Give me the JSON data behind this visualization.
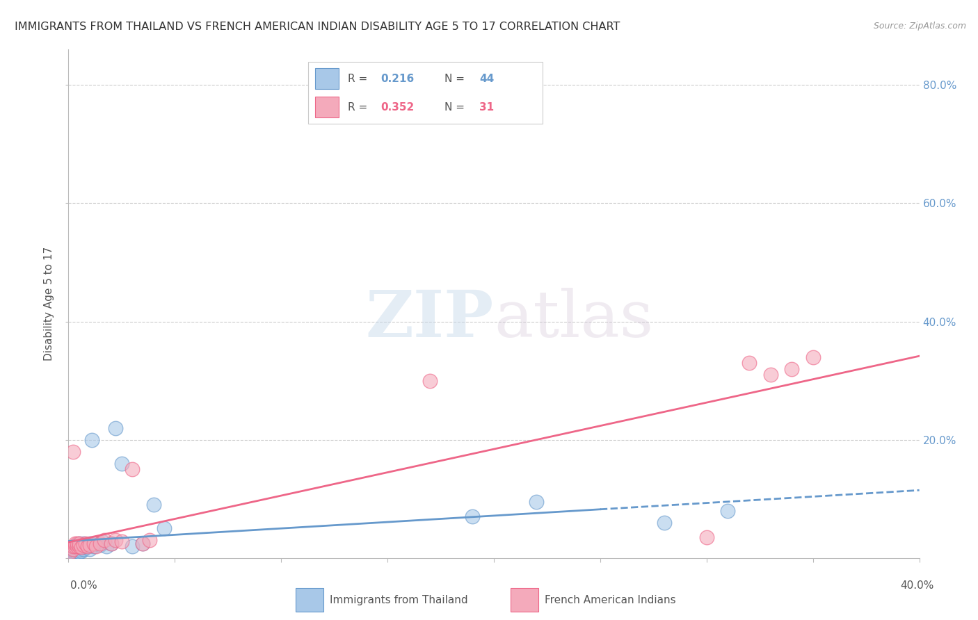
{
  "title": "IMMIGRANTS FROM THAILAND VS FRENCH AMERICAN INDIAN DISABILITY AGE 5 TO 17 CORRELATION CHART",
  "source": "Source: ZipAtlas.com",
  "ylabel": "Disability Age 5 to 17",
  "legend1_label": "Immigrants from Thailand",
  "legend2_label": "French American Indians",
  "r1": 0.216,
  "n1": 44,
  "r2": 0.352,
  "n2": 31,
  "color_blue": "#A8C8E8",
  "color_pink": "#F4AABB",
  "line_color_blue": "#6699CC",
  "line_color_pink": "#EE6688",
  "watermark_zip": "ZIP",
  "watermark_atlas": "atlas",
  "xlim": [
    0.0,
    0.4
  ],
  "ylim": [
    0.0,
    0.86
  ],
  "th_x": [
    0.001,
    0.001,
    0.001,
    0.001,
    0.002,
    0.002,
    0.002,
    0.002,
    0.002,
    0.003,
    0.003,
    0.003,
    0.003,
    0.004,
    0.004,
    0.004,
    0.005,
    0.005,
    0.005,
    0.006,
    0.006,
    0.007,
    0.007,
    0.008,
    0.009,
    0.01,
    0.01,
    0.011,
    0.012,
    0.013,
    0.015,
    0.016,
    0.018,
    0.02,
    0.022,
    0.025,
    0.03,
    0.035,
    0.04,
    0.045,
    0.19,
    0.22,
    0.28,
    0.31
  ],
  "th_y": [
    0.003,
    0.005,
    0.007,
    0.01,
    0.004,
    0.006,
    0.008,
    0.012,
    0.015,
    0.005,
    0.008,
    0.01,
    0.02,
    0.008,
    0.012,
    0.018,
    0.01,
    0.015,
    0.025,
    0.012,
    0.02,
    0.015,
    0.025,
    0.018,
    0.02,
    0.015,
    0.025,
    0.2,
    0.02,
    0.025,
    0.022,
    0.028,
    0.02,
    0.025,
    0.22,
    0.16,
    0.02,
    0.025,
    0.09,
    0.05,
    0.07,
    0.095,
    0.06,
    0.08
  ],
  "fr_x": [
    0.001,
    0.002,
    0.002,
    0.002,
    0.003,
    0.003,
    0.004,
    0.004,
    0.005,
    0.005,
    0.006,
    0.007,
    0.008,
    0.009,
    0.01,
    0.012,
    0.013,
    0.015,
    0.017,
    0.02,
    0.022,
    0.025,
    0.03,
    0.035,
    0.038,
    0.17,
    0.3,
    0.32,
    0.33,
    0.34,
    0.35
  ],
  "fr_y": [
    0.01,
    0.015,
    0.02,
    0.18,
    0.02,
    0.025,
    0.02,
    0.025,
    0.02,
    0.025,
    0.018,
    0.022,
    0.025,
    0.02,
    0.022,
    0.025,
    0.02,
    0.025,
    0.03,
    0.025,
    0.03,
    0.028,
    0.15,
    0.025,
    0.03,
    0.3,
    0.035,
    0.33,
    0.31,
    0.32,
    0.34
  ],
  "yticks": [
    0.0,
    0.2,
    0.4,
    0.6,
    0.8
  ],
  "ytick_labels_right": [
    "",
    "20.0%",
    "40.0%",
    "60.0%",
    "80.0%"
  ],
  "xtick_label_left": "0.0%",
  "xtick_label_right": "40.0%"
}
